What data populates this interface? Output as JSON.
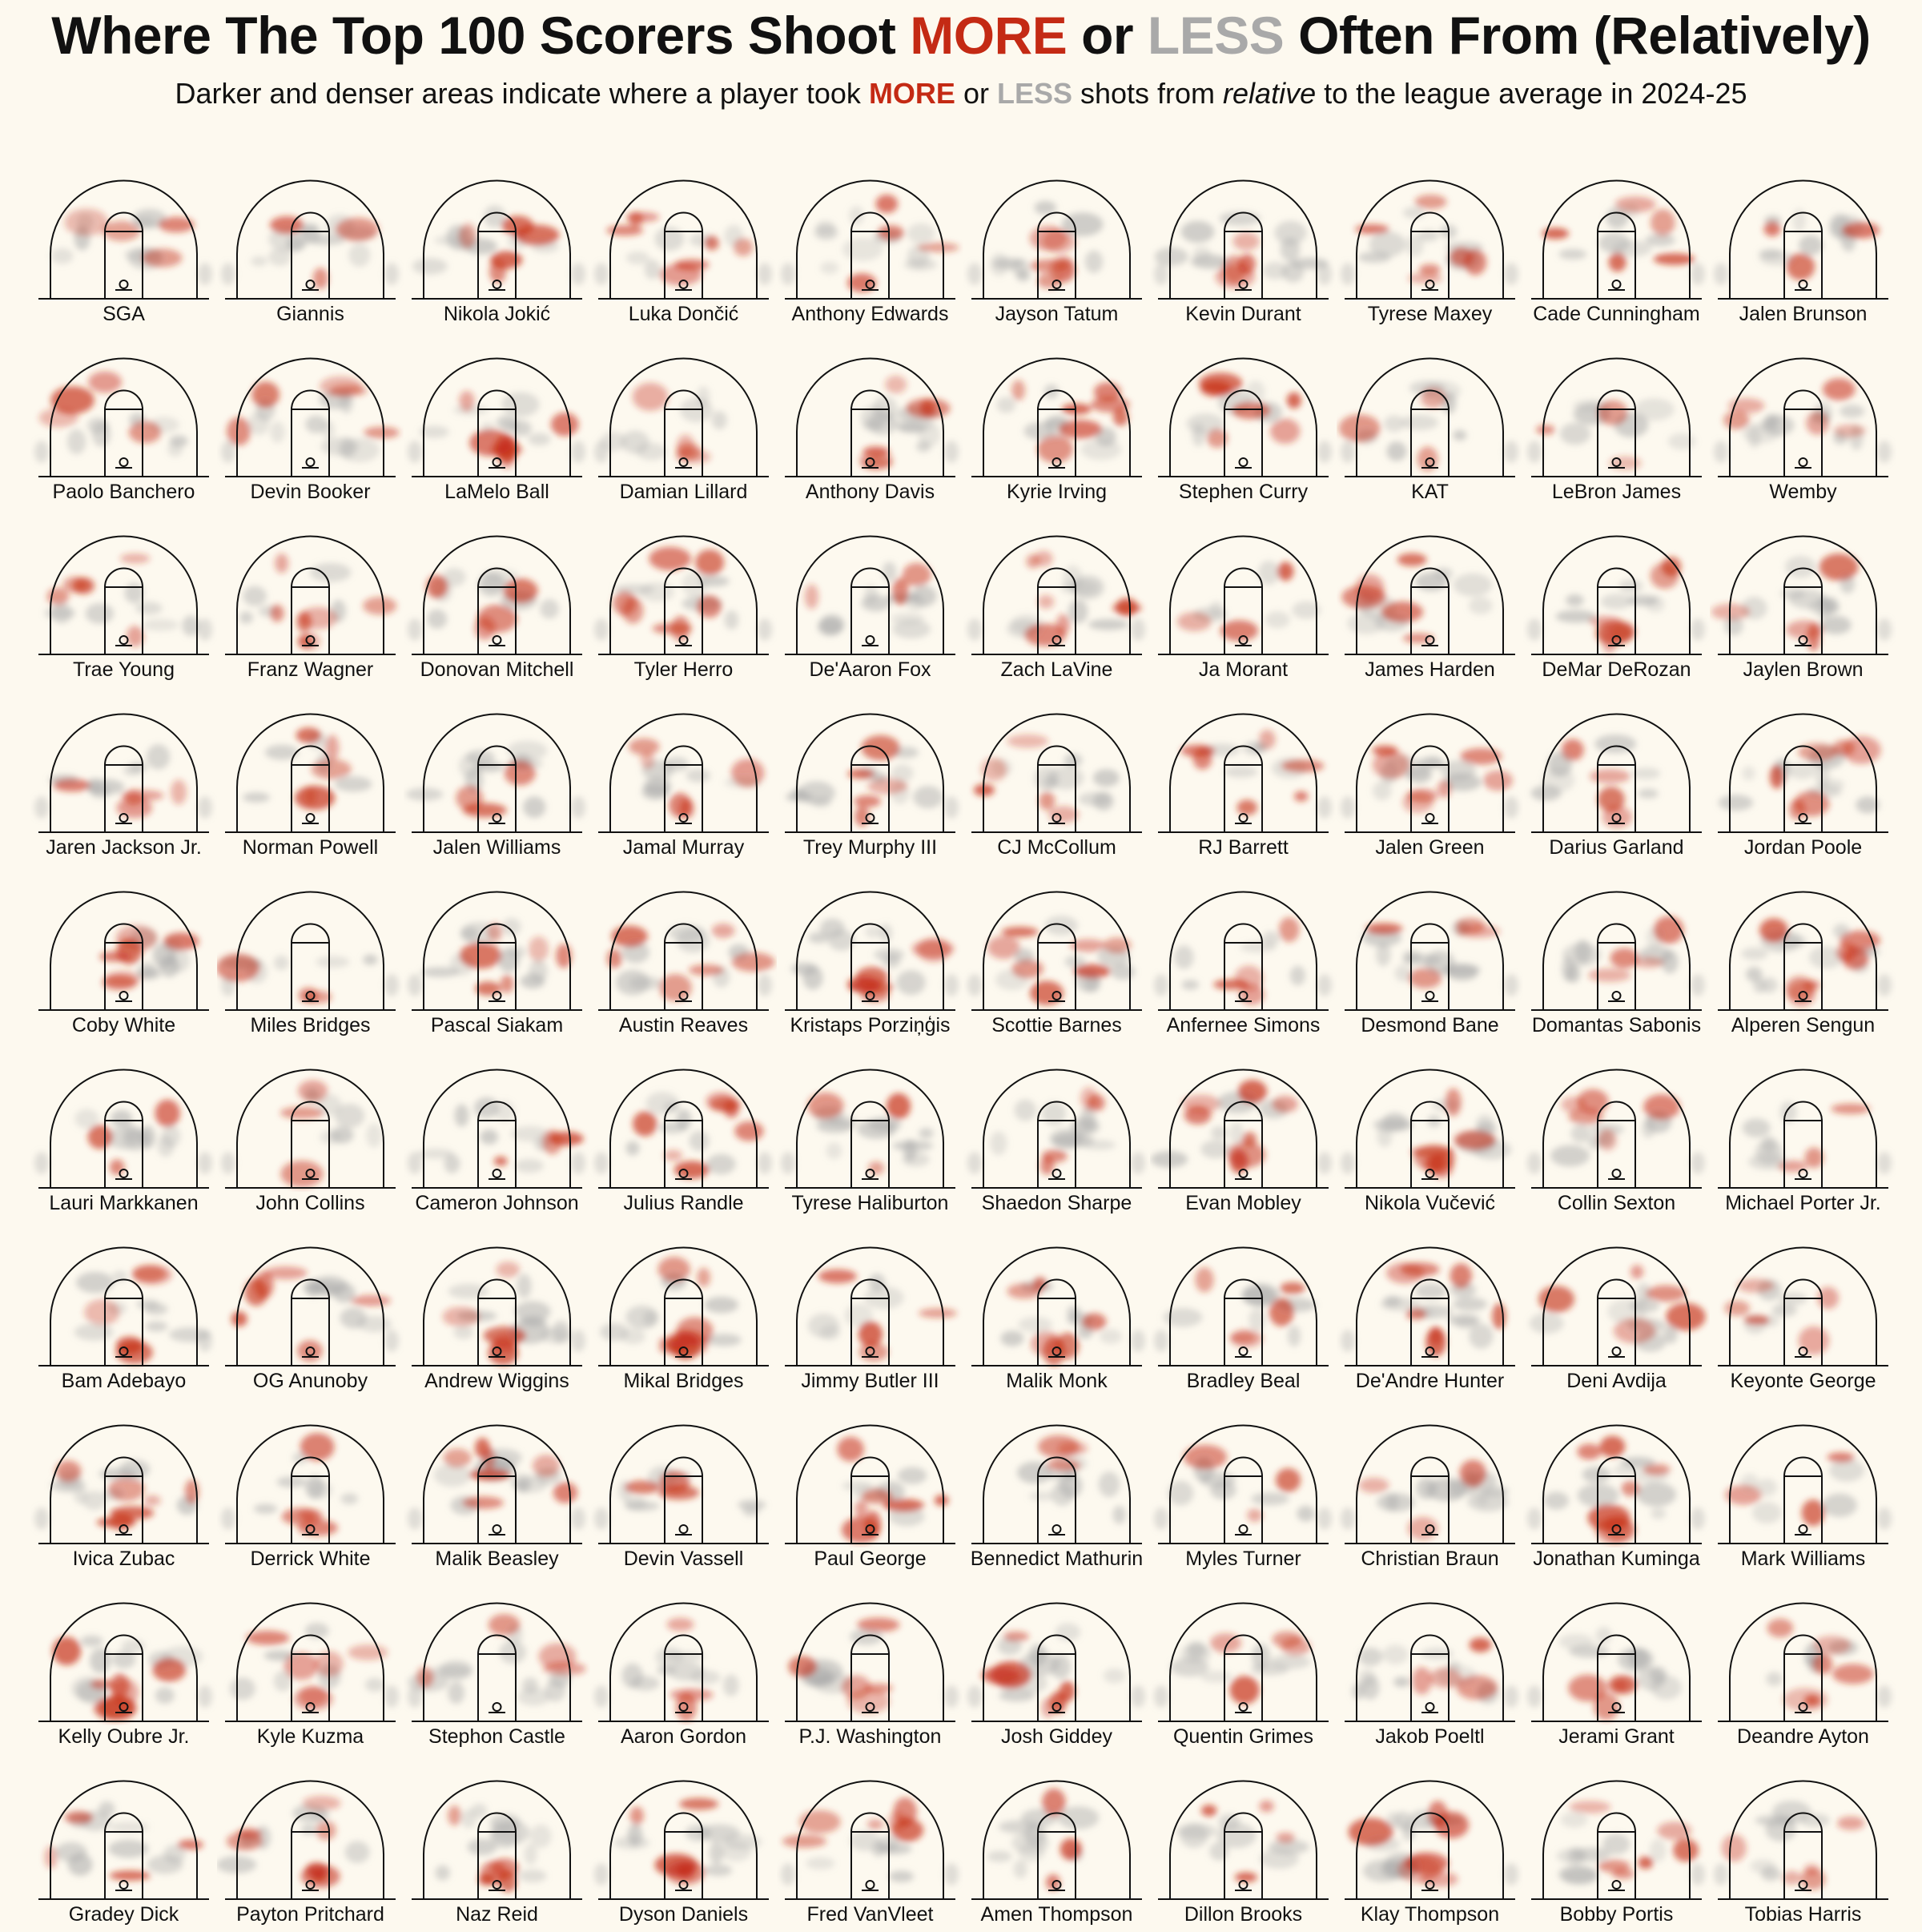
{
  "title": {
    "part1": "Where The Top 100 Scorers Shoot ",
    "more": "MORE",
    "or": " or ",
    "less": "LESS",
    "part2": " Often From (Relatively)"
  },
  "subtitle": {
    "part1": "Darker and denser areas indicate where a player took ",
    "more": "MORE",
    "or": " or ",
    "less": "LESS",
    "part2": " shots from ",
    "relative": "relative",
    "part3": " to the league average in 2024-25"
  },
  "colors": {
    "more": "#c42a14",
    "less": "#a9a9a9",
    "background": "#fdf9ef"
  },
  "chart_data": {
    "type": "heatmap",
    "grid": "10x10 small multiples of half-court shot density relative to league average",
    "players": [
      "SGA",
      "Giannis",
      "Nikola Jokić",
      "Luka Dončić",
      "Anthony Edwards",
      "Jayson Tatum",
      "Kevin Durant",
      "Tyrese Maxey",
      "Cade Cunningham",
      "Jalen Brunson",
      "Paolo Banchero",
      "Devin Booker",
      "LaMelo Ball",
      "Damian Lillard",
      "Anthony Davis",
      "Kyrie Irving",
      "Stephen Curry",
      "KAT",
      "LeBron James",
      "Wemby",
      "Trae Young",
      "Franz Wagner",
      "Donovan Mitchell",
      "Tyler Herro",
      "De'Aaron Fox",
      "Zach LaVine",
      "Ja Morant",
      "James Harden",
      "DeMar DeRozan",
      "Jaylen Brown",
      "Jaren Jackson Jr.",
      "Norman Powell",
      "Jalen Williams",
      "Jamal Murray",
      "Trey Murphy III",
      "CJ McCollum",
      "RJ Barrett",
      "Jalen Green",
      "Darius Garland",
      "Jordan Poole",
      "Coby White",
      "Miles Bridges",
      "Pascal Siakam",
      "Austin Reaves",
      "Kristaps Porziņģis",
      "Scottie Barnes",
      "Anfernee Simons",
      "Desmond Bane",
      "Domantas Sabonis",
      "Alperen Sengun",
      "Lauri Markkanen",
      "John Collins",
      "Cameron Johnson",
      "Julius Randle",
      "Tyrese Haliburton",
      "Shaedon Sharpe",
      "Evan Mobley",
      "Nikola Vučević",
      "Collin Sexton",
      "Michael Porter Jr.",
      "Bam Adebayo",
      "OG Anunoby",
      "Andrew Wiggins",
      "Mikal Bridges",
      "Jimmy Butler III",
      "Malik Monk",
      "Bradley Beal",
      "De'Andre Hunter",
      "Deni Avdija",
      "Keyonte George",
      "Ivica Zubac",
      "Derrick White",
      "Malik Beasley",
      "Devin Vassell",
      "Paul George",
      "Bennedict Mathurin",
      "Myles Turner",
      "Christian Braun",
      "Jonathan Kuminga",
      "Mark Williams",
      "Kelly Oubre Jr.",
      "Kyle Kuzma",
      "Stephon Castle",
      "Aaron Gordon",
      "P.J. Washington",
      "Josh Giddey",
      "Quentin Grimes",
      "Jakob Poeltl",
      "Jerami Grant",
      "Deandre Ayton",
      "Gradey Dick",
      "Payton Pritchard",
      "Naz Reid",
      "Dyson Daniels",
      "Fred VanVleet",
      "Amen Thompson",
      "Dillon Brooks",
      "Klay Thompson",
      "Bobby Portis",
      "Tobias Harris"
    ]
  }
}
